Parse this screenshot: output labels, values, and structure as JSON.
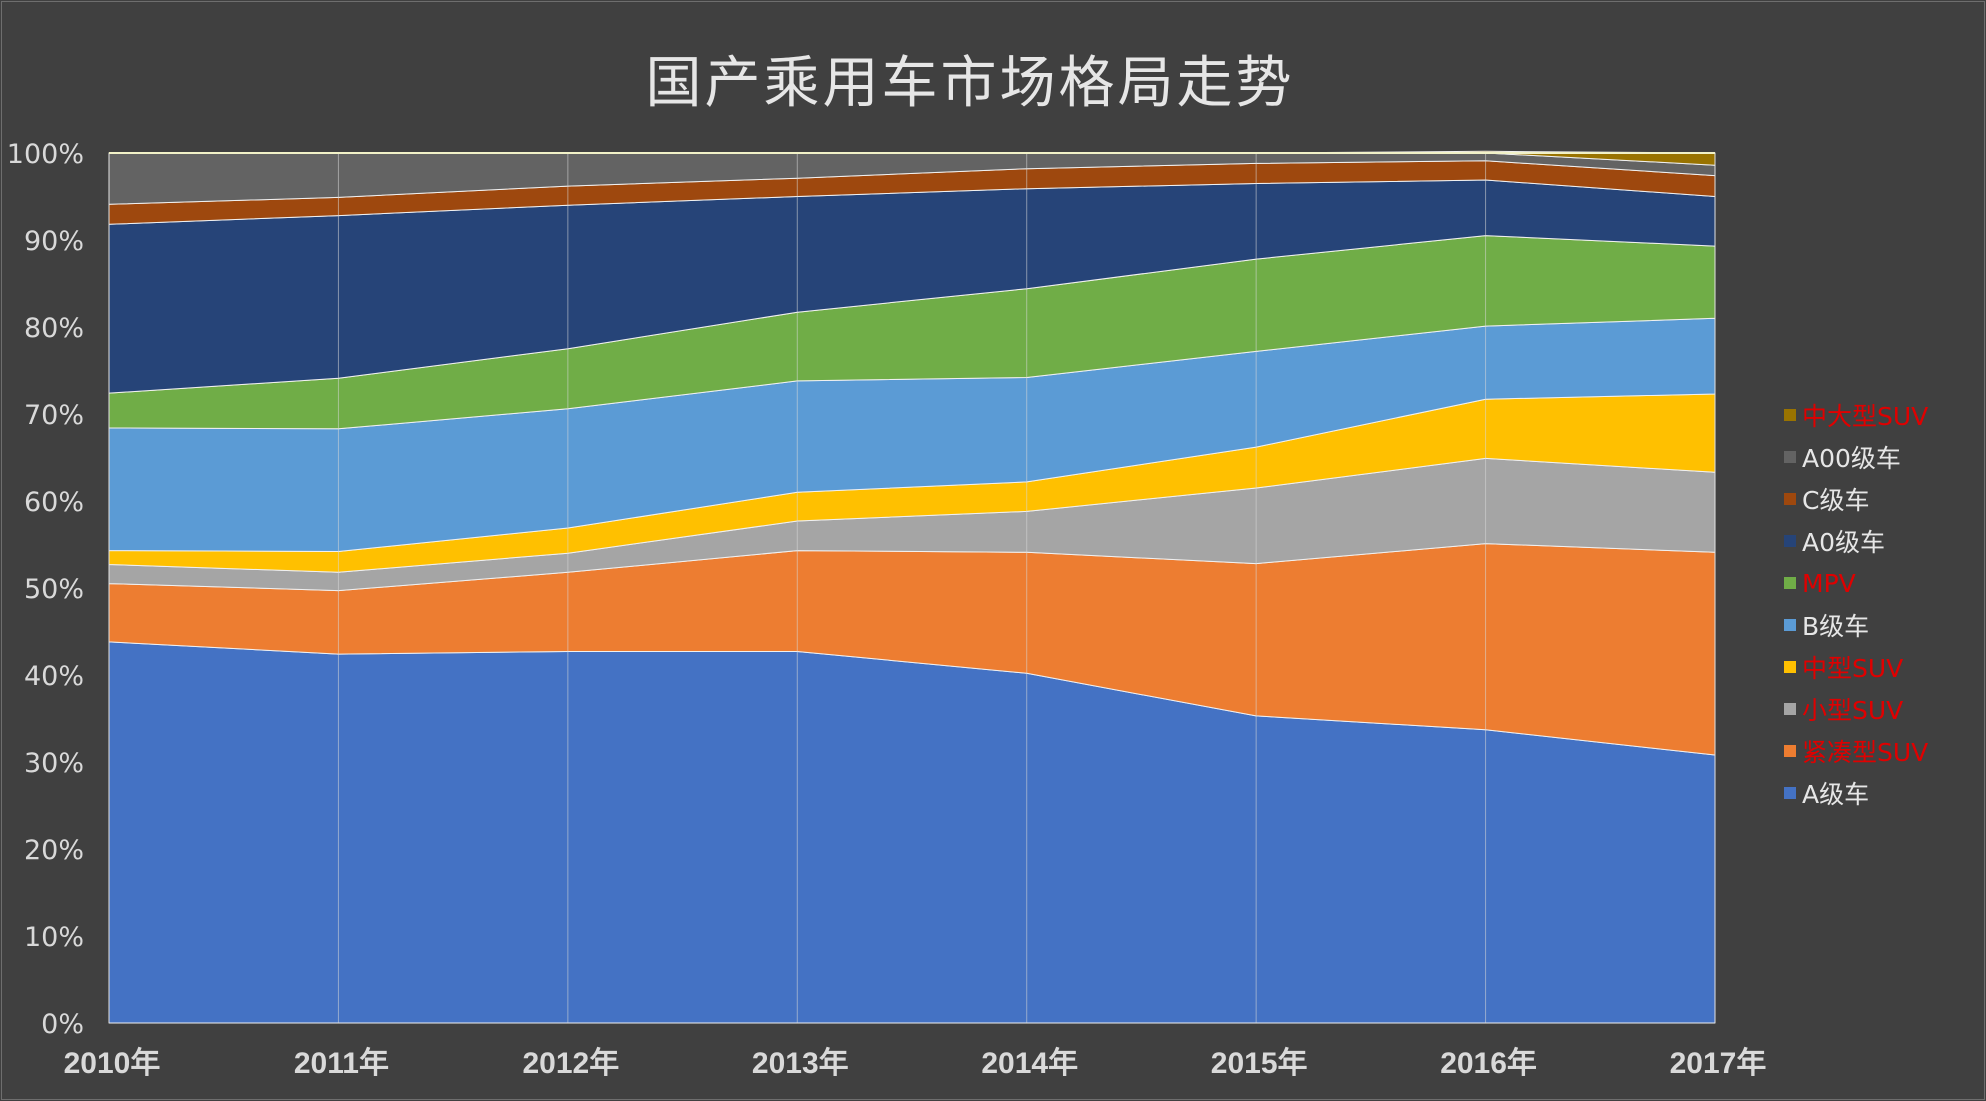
{
  "chart_data": {
    "type": "area",
    "stacked": true,
    "percent_stacked": true,
    "title": "国产乘用车市场格局走势",
    "xlabel": "",
    "ylabel": "",
    "categories": [
      "2010年",
      "2011年",
      "2012年",
      "2013年",
      "2014年",
      "2015年",
      "2016年",
      "2017年"
    ],
    "y_ticks": [
      "0%",
      "10%",
      "20%",
      "30%",
      "40%",
      "50%",
      "60%",
      "70%",
      "80%",
      "90%",
      "100%"
    ],
    "ylim": [
      0,
      100
    ],
    "grid": "vertical",
    "legend_position": "right",
    "series": [
      {
        "name": "A级车",
        "color": "#4472C4",
        "label_color": "#E6E6E6",
        "values": [
          43.8,
          42.4,
          42.7,
          42.7,
          40.2,
          35.3,
          33.7,
          30.8
        ]
      },
      {
        "name": "紧凑型SUV",
        "color": "#ED7D31",
        "label_color": "#E00000",
        "values": [
          6.7,
          7.3,
          9.1,
          11.6,
          13.9,
          17.5,
          21.4,
          23.3
        ]
      },
      {
        "name": "小型SUV",
        "color": "#A5A5A5",
        "label_color": "#E00000",
        "values": [
          2.2,
          2.1,
          2.2,
          3.4,
          4.7,
          8.7,
          9.8,
          9.2
        ]
      },
      {
        "name": "中型SUV",
        "color": "#FFC000",
        "label_color": "#E00000",
        "values": [
          1.6,
          2.4,
          2.9,
          3.3,
          3.4,
          4.7,
          6.8,
          9.0
        ]
      },
      {
        "name": "B级车",
        "color": "#5B9BD5",
        "label_color": "#E6E6E6",
        "values": [
          14.1,
          14.1,
          13.7,
          12.8,
          12.0,
          11.0,
          8.4,
          8.7
        ]
      },
      {
        "name": "MPV",
        "color": "#70AD47",
        "label_color": "#E00000",
        "values": [
          4.0,
          5.8,
          6.9,
          7.9,
          10.2,
          10.6,
          10.4,
          8.3
        ]
      },
      {
        "name": "A0级车",
        "color": "#264478",
        "label_color": "#E6E6E6",
        "values": [
          19.4,
          18.7,
          16.5,
          13.3,
          11.5,
          8.7,
          6.4,
          5.7
        ]
      },
      {
        "name": "C级车",
        "color": "#9E480E",
        "label_color": "#E6E6E6",
        "values": [
          2.3,
          2.1,
          2.2,
          2.1,
          2.3,
          2.3,
          2.2,
          2.4
        ]
      },
      {
        "name": "A00级车",
        "color": "#636363",
        "label_color": "#E6E6E6",
        "values": [
          5.9,
          5.1,
          3.8,
          2.9,
          1.8,
          1.2,
          0.9,
          1.2
        ]
      },
      {
        "name": "中大型SUV",
        "color": "#997300",
        "label_color": "#E00000",
        "values": [
          0.0,
          0.0,
          0.0,
          0.0,
          0.0,
          0.0,
          0.2,
          1.4
        ]
      }
    ]
  }
}
